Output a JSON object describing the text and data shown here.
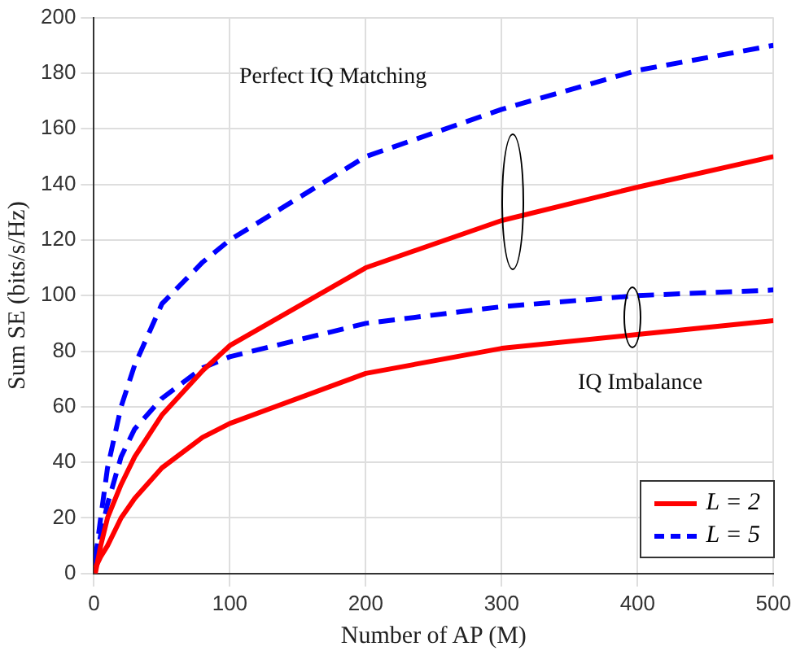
{
  "chart_data": {
    "type": "line",
    "xlabel": "Number of AP (M)",
    "ylabel": "Sum SE (bits/s/Hz)",
    "xlim": [
      0,
      500
    ],
    "xticks": [
      0,
      100,
      200,
      300,
      400,
      500
    ],
    "ylim": [
      0,
      200
    ],
    "yticks": [
      0,
      20,
      40,
      60,
      80,
      100,
      120,
      140,
      160,
      180,
      200
    ],
    "grid": true,
    "legend": "bottom right",
    "marker": "none",
    "annotations": [
      "Perfect IQ Matching",
      "IQ Imbalance"
    ],
    "series": [
      {
        "name": "L = 2",
        "color": "#ff0000",
        "line_style": "solid",
        "x": [
          1,
          5,
          10,
          20,
          30,
          50,
          80,
          100,
          200,
          300,
          400,
          500
        ],
        "values": [
          0,
          10,
          20,
          32,
          42,
          57,
          73,
          82,
          110,
          127,
          139,
          150
        ]
      },
      {
        "name": "L = 5",
        "color": "#0000ff",
        "line_style": "dashed",
        "x": [
          1,
          5,
          10,
          20,
          30,
          50,
          80,
          100,
          200,
          300,
          400,
          500
        ],
        "values": [
          5,
          20,
          38,
          60,
          75,
          97,
          112,
          120,
          150,
          167,
          181,
          190
        ]
      },
      {
        "color": "#ff0000",
        "line_style": "solid",
        "x": [
          1,
          5,
          10,
          20,
          30,
          50,
          80,
          100,
          200,
          300,
          400,
          500
        ],
        "values": [
          2,
          6,
          10,
          20,
          27,
          38,
          49,
          54,
          72,
          81,
          86,
          91
        ]
      },
      {
        "color": "#0000ff",
        "line_style": "dashed",
        "x": [
          1,
          5,
          10,
          20,
          30,
          50,
          80,
          100,
          200,
          300,
          400,
          500
        ],
        "values": [
          3,
          14,
          25,
          42,
          52,
          63,
          74,
          78,
          90,
          96,
          100,
          102
        ]
      }
    ]
  }
}
